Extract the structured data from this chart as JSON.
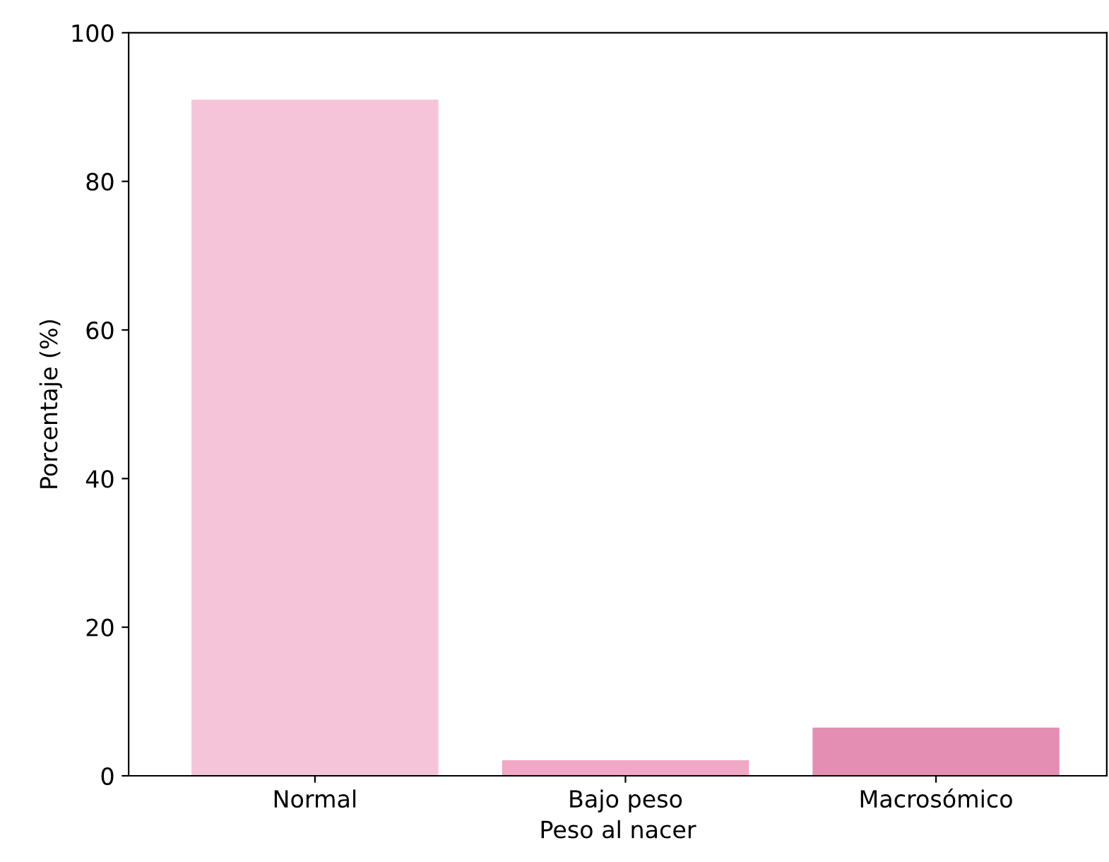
{
  "chart_data": {
    "type": "bar",
    "xlabel": "Peso al nacer",
    "ylabel": "Porcentaje (%)",
    "categories": [
      "Normal",
      "Bajo peso",
      "Macrosómico"
    ],
    "values": [
      91.1,
      2.2,
      6.6
    ],
    "colors": [
      "#f6c4d8",
      "#f1a7c6",
      "#e58eb4"
    ],
    "ylim": [
      0,
      100
    ],
    "yticks": [
      0,
      20,
      40,
      60,
      80,
      100
    ],
    "grid": false,
    "legend": false
  }
}
